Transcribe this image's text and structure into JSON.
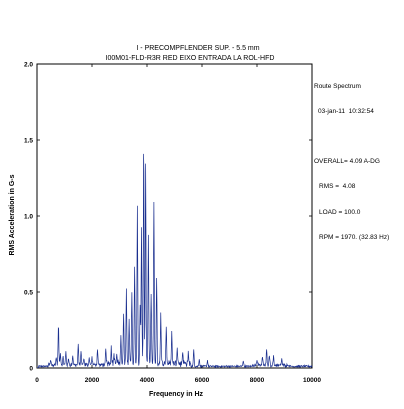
{
  "chart_data": {
    "type": "line",
    "title_line1": "I    - PRECOMPFLENDER SUP. - 5.5 mm",
    "title_line2": "I00M01-FLD-R3R   RED EIXO ENTRADA LA ROL-HFD",
    "xlabel": "Frequency in Hz",
    "ylabel": "RMS Acceleration in G-s",
    "xlim": [
      0,
      10000
    ],
    "ylim": [
      0,
      2.0
    ],
    "x_ticks": [
      "0",
      "2000",
      "4000",
      "6000",
      "8000",
      "10000"
    ],
    "y_ticks": [
      "0",
      "0.5",
      "1.0",
      "1.5",
      "2.0"
    ],
    "grid": false,
    "color": "#1a2f8f",
    "peaks": [
      [
        500,
        0.03
      ],
      [
        700,
        0.05
      ],
      [
        780,
        0.26
      ],
      [
        850,
        0.08
      ],
      [
        950,
        0.05
      ],
      [
        1050,
        0.09
      ],
      [
        1150,
        0.04
      ],
      [
        1300,
        0.06
      ],
      [
        1500,
        0.13
      ],
      [
        1600,
        0.08
      ],
      [
        1700,
        0.04
      ],
      [
        1900,
        0.05
      ],
      [
        2000,
        0.05
      ],
      [
        2200,
        0.09
      ],
      [
        2500,
        0.12
      ],
      [
        2700,
        0.1
      ],
      [
        2800,
        0.06
      ],
      [
        2900,
        0.05
      ],
      [
        3050,
        0.19
      ],
      [
        3150,
        0.33
      ],
      [
        3250,
        0.5
      ],
      [
        3350,
        0.3
      ],
      [
        3450,
        0.47
      ],
      [
        3550,
        0.62
      ],
      [
        3650,
        1.02
      ],
      [
        3750,
        0.38
      ],
      [
        3800,
        0.88
      ],
      [
        3880,
        1.45
      ],
      [
        3950,
        1.3
      ],
      [
        4050,
        0.83
      ],
      [
        4150,
        0.47
      ],
      [
        4250,
        1.06
      ],
      [
        4350,
        0.55
      ],
      [
        4500,
        0.32
      ],
      [
        4700,
        0.25
      ],
      [
        4900,
        0.2
      ],
      [
        5100,
        0.12
      ],
      [
        5300,
        0.08
      ],
      [
        5500,
        0.06
      ],
      [
        5700,
        0.11
      ],
      [
        5900,
        0.05
      ],
      [
        6200,
        0.04
      ],
      [
        7500,
        0.04
      ],
      [
        8000,
        0.04
      ],
      [
        8200,
        0.06
      ],
      [
        8350,
        0.1
      ],
      [
        8450,
        0.07
      ],
      [
        8600,
        0.06
      ],
      [
        8900,
        0.04
      ]
    ]
  },
  "info": {
    "header": "Route Spectrum",
    "date": "03-jan-11  10:32:54",
    "overall": "OVERALL= 4.09 A-DG",
    "rms": "RMS =  4.08",
    "load": "LOAD = 100.0",
    "rpm": "RPM = 1970. (32.83 Hz)"
  }
}
